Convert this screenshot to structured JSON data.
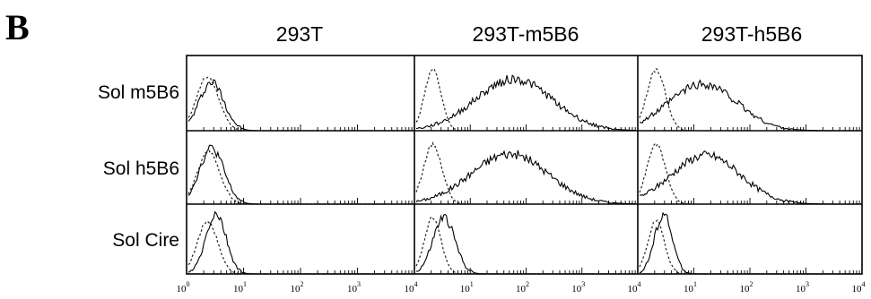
{
  "panel_letter": "B",
  "columns": [
    "293T",
    "293T-m5B6",
    "293T-h5B6"
  ],
  "rows": [
    "Sol m5B6",
    "Sol h5B6",
    "Sol Cire"
  ],
  "tick_labels": [
    {
      "base": "10",
      "exp": "0"
    },
    {
      "base": "10",
      "exp": "1"
    },
    {
      "base": "10",
      "exp": "2"
    },
    {
      "base": "10",
      "exp": "3"
    },
    {
      "base": "10",
      "exp": "4"
    }
  ],
  "chart_data": {
    "type": "line",
    "xscale": "log",
    "xlim": [
      1,
      10000
    ],
    "grid": false,
    "legend": "none",
    "series_styles": {
      "control": "dotted",
      "sample": "solid"
    },
    "panels": [
      {
        "row": "Sol m5B6",
        "column": "293T",
        "control": {
          "center": 2.2,
          "width": 0.2,
          "height": 0.75
        },
        "sample": {
          "center": 2.6,
          "width": 0.22,
          "height": 0.68
        }
      },
      {
        "row": "Sol m5B6",
        "column": "293T-m5B6",
        "control": {
          "center": 2.0,
          "width": 0.15,
          "height": 0.85
        },
        "sample": {
          "center": 60,
          "width": 0.7,
          "height": 0.72
        }
      },
      {
        "row": "Sol m5B6",
        "column": "293T-h5B6",
        "control": {
          "center": 2.0,
          "width": 0.17,
          "height": 0.85
        },
        "sample": {
          "center": 14,
          "width": 0.62,
          "height": 0.65
        }
      },
      {
        "row": "Sol h5B6",
        "column": "293T",
        "control": {
          "center": 2.3,
          "width": 0.2,
          "height": 0.75
        },
        "sample": {
          "center": 2.6,
          "width": 0.22,
          "height": 0.8
        }
      },
      {
        "row": "Sol h5B6",
        "column": "293T-m5B6",
        "control": {
          "center": 2.0,
          "width": 0.17,
          "height": 0.85
        },
        "sample": {
          "center": 50,
          "width": 0.7,
          "height": 0.72
        }
      },
      {
        "row": "Sol h5B6",
        "column": "293T-h5B6",
        "control": {
          "center": 2.0,
          "width": 0.17,
          "height": 0.85
        },
        "sample": {
          "center": 16,
          "width": 0.62,
          "height": 0.7
        }
      },
      {
        "row": "Sol Cire",
        "column": "293T",
        "control": {
          "center": 2.2,
          "width": 0.18,
          "height": 0.8
        },
        "sample": {
          "center": 3.1,
          "width": 0.18,
          "height": 0.9
        }
      },
      {
        "row": "Sol Cire",
        "column": "293T-m5B6",
        "control": {
          "center": 2.0,
          "width": 0.15,
          "height": 0.85
        },
        "sample": {
          "center": 3.2,
          "width": 0.2,
          "height": 0.85
        }
      },
      {
        "row": "Sol Cire",
        "column": "293T-h5B6",
        "control": {
          "center": 2.0,
          "width": 0.15,
          "height": 0.8
        },
        "sample": {
          "center": 2.7,
          "width": 0.16,
          "height": 0.9
        }
      }
    ]
  }
}
